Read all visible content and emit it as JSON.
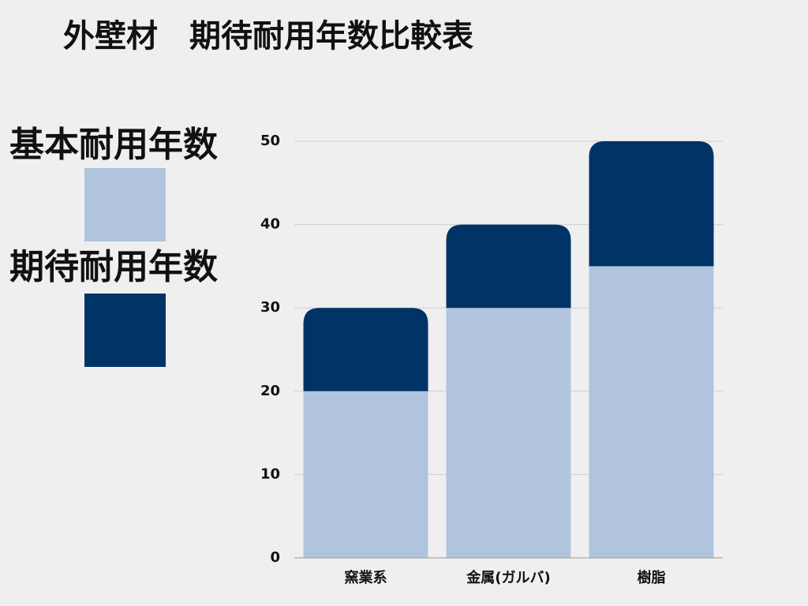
{
  "chart_data": {
    "type": "stacked-bar",
    "title": "外壁材　期待耐用年数比較表",
    "categories": [
      "窯業系",
      "金属(ガルバ)",
      "樹脂"
    ],
    "series": [
      {
        "name": "基本耐用年数",
        "color": "#b0c4de",
        "values": [
          20,
          30,
          35
        ]
      },
      {
        "name": "期待耐用年数",
        "color": "#003366",
        "values": [
          10,
          10,
          15
        ]
      }
    ],
    "ylim": [
      0,
      50
    ],
    "yticks": [
      0,
      10,
      20,
      30,
      40,
      50
    ],
    "grid": true
  }
}
